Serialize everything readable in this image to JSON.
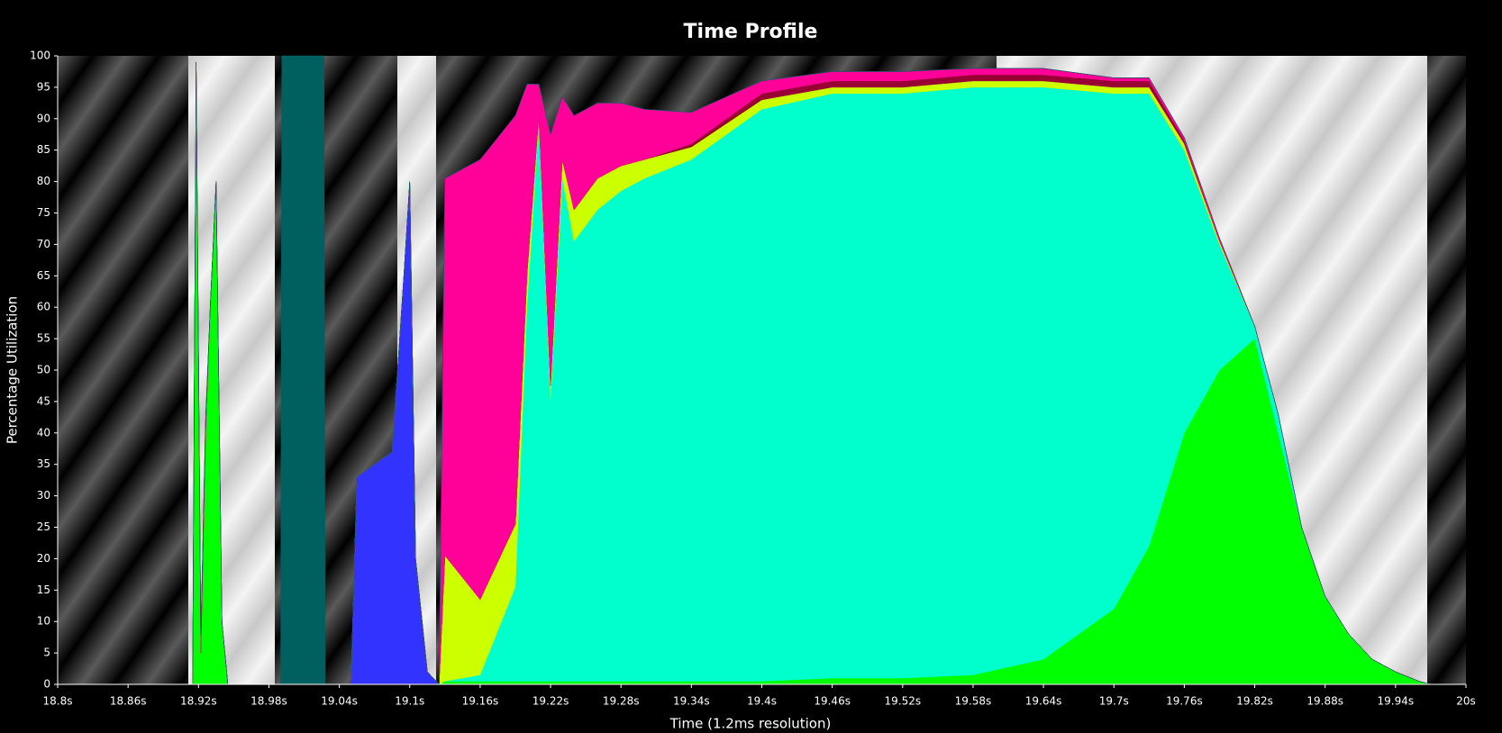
{
  "chart_data": {
    "type": "area",
    "stacked": true,
    "title": "Time Profile",
    "x_label": "Time (1.2ms resolution)",
    "y_label": "Percentage Utilization",
    "x": [
      18.8,
      18.915,
      18.918,
      18.922,
      18.926,
      18.93,
      18.935,
      18.94,
      18.945,
      18.95,
      18.99,
      18.991,
      19.027,
      19.028,
      19.05,
      19.055,
      19.07,
      19.085,
      19.095,
      19.1,
      19.105,
      19.115,
      19.125,
      19.13,
      19.16,
      19.19,
      19.2,
      19.21,
      19.22,
      19.23,
      19.24,
      19.26,
      19.28,
      19.3,
      19.34,
      19.4,
      19.46,
      19.52,
      19.58,
      19.64,
      19.7,
      19.73,
      19.76,
      19.79,
      19.82,
      19.84,
      19.86,
      19.88,
      19.9,
      19.92,
      19.94,
      19.96,
      19.97,
      20.0
    ],
    "series": [
      {
        "color": "#3333ff",
        "values": [
          0,
          0,
          0,
          0,
          0,
          0,
          0,
          0,
          0,
          0,
          0,
          0,
          0,
          0,
          0,
          33,
          35,
          37,
          65,
          80,
          20,
          2,
          0,
          0,
          0,
          0,
          0,
          0,
          0,
          0,
          0,
          0,
          0,
          0,
          0,
          0,
          0,
          0,
          0,
          0,
          0,
          0,
          0,
          0,
          0,
          0,
          0,
          0,
          0,
          0,
          0,
          0,
          0,
          0
        ]
      },
      {
        "color": "#00ff00",
        "values": [
          0,
          0,
          99,
          5,
          40,
          60,
          80,
          10,
          0,
          0,
          0,
          0,
          0,
          0,
          0,
          0,
          0,
          0,
          0,
          0,
          0,
          0,
          0,
          0.5,
          0.5,
          0.5,
          0.5,
          0.5,
          0.5,
          0.5,
          0.5,
          0.5,
          0.5,
          0.5,
          0.5,
          0.5,
          1,
          1,
          1.5,
          4,
          12,
          22,
          40,
          50,
          55,
          40,
          25,
          14,
          8,
          4,
          2,
          0.5,
          0,
          0
        ]
      },
      {
        "color": "#00ffcc",
        "values": [
          0,
          0,
          0,
          0,
          0,
          0,
          0,
          0,
          0,
          0,
          0,
          0,
          0,
          0,
          0,
          0,
          0,
          0,
          0,
          0,
          0,
          0,
          0,
          0,
          1,
          15,
          60,
          89,
          45,
          80,
          70,
          75,
          78,
          80,
          83,
          91,
          93,
          93,
          93.5,
          91,
          82,
          72,
          45,
          20,
          2,
          3,
          0,
          0,
          0,
          0,
          0,
          0,
          0,
          0
        ]
      },
      {
        "color": "#ccff00",
        "values": [
          0,
          0,
          0,
          0,
          0,
          0,
          0,
          0,
          0,
          0,
          0,
          0,
          0,
          0,
          0,
          0,
          0,
          0,
          0,
          0,
          0,
          0,
          0,
          20,
          12,
          10,
          5,
          1,
          2,
          3,
          5,
          5,
          4,
          3,
          2,
          1.5,
          1,
          1,
          1,
          1,
          1,
          1,
          1,
          0.5,
          0,
          0,
          0,
          0,
          0,
          0,
          0,
          0,
          0,
          0
        ]
      },
      {
        "color": "#990033",
        "values": [
          0,
          0,
          0,
          0,
          0,
          0,
          0,
          0,
          0,
          0,
          0,
          0,
          0,
          0,
          0,
          0,
          0,
          0,
          0,
          0,
          0,
          0,
          0,
          0,
          0,
          0,
          0,
          0,
          0,
          0,
          0,
          0,
          0,
          0,
          0.5,
          1,
          1,
          1,
          1,
          1,
          1,
          1,
          0.5,
          0,
          0,
          0,
          0,
          0,
          0,
          0,
          0,
          0,
          0,
          0
        ]
      },
      {
        "color": "#ff0099",
        "values": [
          0,
          0,
          0,
          3,
          2,
          0,
          0,
          0,
          0,
          0,
          0,
          0,
          0,
          0,
          0,
          0,
          0,
          0,
          0,
          0,
          0,
          0,
          0,
          60,
          70,
          65,
          30,
          5,
          40,
          10,
          15,
          12,
          10,
          8,
          5,
          2,
          1.5,
          1.5,
          1,
          1,
          0.5,
          0.5,
          0.5,
          0.5,
          0,
          0,
          0,
          0,
          0,
          0,
          0,
          0,
          0,
          0
        ]
      },
      {
        "color": "#006060",
        "values": [
          0,
          0,
          0,
          0,
          0,
          0,
          0,
          0,
          0,
          0,
          0,
          100,
          100,
          0,
          0,
          0,
          0,
          0,
          0,
          0,
          0,
          0,
          0,
          0,
          0,
          0,
          0,
          0,
          0,
          0,
          0,
          0,
          0,
          0,
          0,
          0,
          0,
          0,
          0,
          0,
          0,
          0,
          0,
          0,
          0,
          0,
          0,
          0,
          0,
          0,
          0,
          0,
          0,
          0
        ]
      }
    ],
    "xlim": [
      18.8,
      20
    ],
    "ylim": [
      0,
      100
    ],
    "xticks": [
      {
        "value": 18.8,
        "label": "18.8s"
      },
      {
        "value": 18.86,
        "label": "18.86s"
      },
      {
        "value": 18.92,
        "label": "18.92s"
      },
      {
        "value": 18.98,
        "label": "18.98s"
      },
      {
        "value": 19.04,
        "label": "19.04s"
      },
      {
        "value": 19.1,
        "label": "19.1s"
      },
      {
        "value": 19.16,
        "label": "19.16s"
      },
      {
        "value": 19.22,
        "label": "19.22s"
      },
      {
        "value": 19.28,
        "label": "19.28s"
      },
      {
        "value": 19.34,
        "label": "19.34s"
      },
      {
        "value": 19.4,
        "label": "19.4s"
      },
      {
        "value": 19.46,
        "label": "19.46s"
      },
      {
        "value": 19.52,
        "label": "19.52s"
      },
      {
        "value": 19.58,
        "label": "19.58s"
      },
      {
        "value": 19.64,
        "label": "19.64s"
      },
      {
        "value": 19.7,
        "label": "19.7s"
      },
      {
        "value": 19.76,
        "label": "19.76s"
      },
      {
        "value": 19.82,
        "label": "19.82s"
      },
      {
        "value": 19.88,
        "label": "19.88s"
      },
      {
        "value": 19.94,
        "label": "19.94s"
      },
      {
        "value": 20,
        "label": "20s"
      }
    ],
    "yticks": [
      0,
      5,
      10,
      15,
      20,
      25,
      30,
      35,
      40,
      45,
      50,
      55,
      60,
      65,
      70,
      75,
      80,
      85,
      90,
      95,
      100
    ]
  }
}
